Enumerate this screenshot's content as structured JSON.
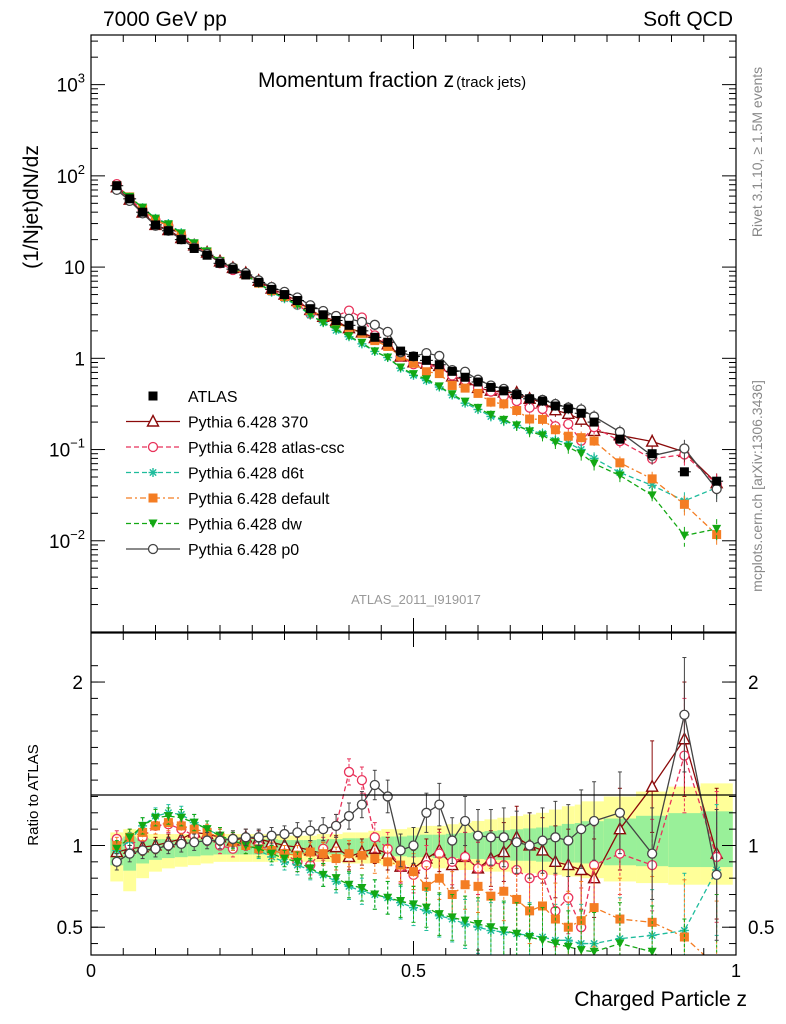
{
  "header": {
    "left": "7000 GeV pp",
    "right": "Soft QCD"
  },
  "side": {
    "rivet": "Rivet 3.1.10, ≥ 1.5M events",
    "mcplots": "mcplots.cern.ch [arXiv:1306.3436]"
  },
  "chart_data": {
    "type": "scatter",
    "title_main": "Momentum fraction z",
    "title_sub": "(track jets)",
    "watermark": "ATLAS_2011_I919017",
    "ylabel": "(1/Njet)dN/dz",
    "xlabel": "Charged Particle z",
    "ratio_ylabel": "Ratio to ATLAS",
    "xlim": [
      0,
      1
    ],
    "ylim": [
      0.001,
      3500
    ],
    "yscale": "log",
    "ratio_ylim": [
      0.33,
      2.3
    ],
    "x_ticks": [
      {
        "v": 0,
        "label": "0"
      },
      {
        "v": 0.5,
        "label": "0.5"
      },
      {
        "v": 1,
        "label": "1"
      }
    ],
    "y_ticks": [
      {
        "v": 1000,
        "base": "10",
        "exp": "3",
        "label": ""
      },
      {
        "v": 100,
        "base": "10",
        "exp": "2",
        "label": ""
      },
      {
        "v": 10,
        "base": "",
        "exp": "",
        "label": "10"
      },
      {
        "v": 1,
        "base": "",
        "exp": "",
        "label": "1"
      },
      {
        "v": 0.1,
        "base": "10",
        "exp": "−1",
        "label": ""
      },
      {
        "v": 0.01,
        "base": "10",
        "exp": "−2",
        "label": ""
      }
    ],
    "ratio_ticks": [
      {
        "v": 2,
        "label": "2"
      },
      {
        "v": 1,
        "label": "1"
      },
      {
        "v": 0.5,
        "label": "0.5"
      }
    ],
    "legend": "left-middle",
    "x": [
      0.04,
      0.06,
      0.08,
      0.1,
      0.12,
      0.14,
      0.16,
      0.18,
      0.2,
      0.22,
      0.24,
      0.26,
      0.28,
      0.3,
      0.32,
      0.34,
      0.36,
      0.38,
      0.4,
      0.42,
      0.44,
      0.46,
      0.48,
      0.5,
      0.52,
      0.54,
      0.56,
      0.58,
      0.6,
      0.62,
      0.64,
      0.66,
      0.68,
      0.7,
      0.72,
      0.74,
      0.76,
      0.78,
      0.82,
      0.87,
      0.92,
      0.97
    ],
    "data": {
      "name": "ATLAS",
      "color": "#000000",
      "values": [
        78,
        56,
        40,
        29,
        25,
        20,
        16,
        13.5,
        11,
        9.5,
        8.2,
        6.8,
        5.7,
        5.0,
        4.3,
        3.5,
        3.0,
        2.6,
        2.3,
        2.0,
        1.7,
        1.5,
        1.2,
        1.05,
        0.95,
        0.85,
        0.72,
        0.62,
        0.55,
        0.48,
        0.44,
        0.4,
        0.36,
        0.34,
        0.3,
        0.28,
        0.25,
        0.2,
        0.13,
        0.09,
        0.057,
        0.045
      ],
      "band_lo": [
        0.78,
        0.72,
        0.8,
        0.84,
        0.86,
        0.87,
        0.88,
        0.89,
        0.9,
        0.9,
        0.9,
        0.9,
        0.9,
        0.91,
        0.9,
        0.9,
        0.9,
        0.9,
        0.89,
        0.89,
        0.89,
        0.88,
        0.88,
        0.87,
        0.87,
        0.86,
        0.86,
        0.85,
        0.85,
        0.84,
        0.84,
        0.83,
        0.83,
        0.82,
        0.82,
        0.81,
        0.81,
        0.8,
        0.78,
        0.77,
        0.76,
        0.76
      ],
      "band_hi": [
        1.08,
        1.1,
        1.08,
        1.07,
        1.07,
        1.07,
        1.07,
        1.07,
        1.07,
        1.07,
        1.07,
        1.07,
        1.07,
        1.06,
        1.06,
        1.06,
        1.07,
        1.07,
        1.08,
        1.08,
        1.09,
        1.1,
        1.1,
        1.11,
        1.12,
        1.12,
        1.13,
        1.14,
        1.15,
        1.16,
        1.17,
        1.18,
        1.19,
        1.2,
        1.22,
        1.24,
        1.25,
        1.27,
        1.3,
        1.33,
        1.36,
        1.38
      ]
    },
    "series": [
      {
        "name": "Pythia 6.428 370",
        "color": "#8b0a0a",
        "dash": "",
        "marker": "triangle-open",
        "ratio": [
          0.96,
          0.98,
          0.99,
          1.0,
          1.02,
          1.04,
          1.08,
          1.07,
          1.05,
          1.03,
          1.05,
          1.04,
          1.02,
          1.0,
          0.99,
          0.97,
          0.95,
          0.99,
          0.93,
          0.96,
          0.98,
          0.95,
          0.87,
          0.86,
          0.92,
          0.97,
          0.88,
          0.93,
          0.86,
          0.92,
          0.96,
          1.05,
          1.0,
          0.97,
          0.9,
          0.88,
          0.85,
          0.8,
          1.1,
          1.36,
          1.65,
          0.95
        ],
        "err": [
          0.05,
          0.05,
          0.05,
          0.05,
          0.05,
          0.05,
          0.05,
          0.05,
          0.05,
          0.05,
          0.05,
          0.05,
          0.05,
          0.05,
          0.06,
          0.06,
          0.07,
          0.07,
          0.08,
          0.08,
          0.09,
          0.1,
          0.1,
          0.11,
          0.12,
          0.13,
          0.14,
          0.15,
          0.16,
          0.17,
          0.18,
          0.19,
          0.2,
          0.2,
          0.22,
          0.22,
          0.24,
          0.24,
          0.25,
          0.28,
          0.35,
          0.4
        ]
      },
      {
        "name": "Pythia 6.428 atlas-csc",
        "color": "#e8325a",
        "dash": "5,3",
        "marker": "circle-open",
        "ratio": [
          1.04,
          1.0,
          1.05,
          1.12,
          1.13,
          1.1,
          1.06,
          1.05,
          1.0,
          0.98,
          1.02,
          1.0,
          0.97,
          0.95,
          0.9,
          0.88,
          0.98,
          1.12,
          1.45,
          1.4,
          1.05,
          0.98,
          0.87,
          0.82,
          0.88,
          0.95,
          0.9,
          0.93,
          0.86,
          0.9,
          0.88,
          0.85,
          0.8,
          0.82,
          0.6,
          0.68,
          0.5,
          0.88,
          0.95,
          0.88,
          1.55,
          0.93
        ],
        "err": [
          0.05,
          0.05,
          0.05,
          0.05,
          0.05,
          0.05,
          0.05,
          0.05,
          0.05,
          0.05,
          0.05,
          0.05,
          0.05,
          0.05,
          0.06,
          0.06,
          0.07,
          0.07,
          0.08,
          0.08,
          0.09,
          0.1,
          0.1,
          0.11,
          0.12,
          0.13,
          0.14,
          0.15,
          0.16,
          0.17,
          0.18,
          0.19,
          0.2,
          0.2,
          0.22,
          0.22,
          0.24,
          0.24,
          0.25,
          0.28,
          0.35,
          0.4
        ]
      },
      {
        "name": "Pythia 6.428 d6t",
        "color": "#1ebc9c",
        "dash": "5,3",
        "marker": "star",
        "ratio": [
          0.97,
          1.03,
          1.12,
          1.18,
          1.2,
          1.19,
          1.14,
          1.1,
          1.06,
          1.02,
          1.0,
          0.97,
          0.93,
          0.9,
          0.88,
          0.85,
          0.82,
          0.78,
          0.75,
          0.72,
          0.7,
          0.68,
          0.65,
          0.62,
          0.6,
          0.57,
          0.55,
          0.52,
          0.5,
          0.48,
          0.47,
          0.46,
          0.45,
          0.44,
          0.42,
          0.42,
          0.4,
          0.4,
          0.43,
          0.45,
          0.48,
          0.85
        ],
        "err": [
          0.05,
          0.05,
          0.05,
          0.05,
          0.05,
          0.05,
          0.05,
          0.05,
          0.05,
          0.05,
          0.05,
          0.05,
          0.05,
          0.05,
          0.06,
          0.06,
          0.07,
          0.07,
          0.08,
          0.08,
          0.09,
          0.1,
          0.1,
          0.11,
          0.12,
          0.13,
          0.14,
          0.15,
          0.16,
          0.17,
          0.18,
          0.19,
          0.2,
          0.2,
          0.22,
          0.22,
          0.24,
          0.24,
          0.25,
          0.28,
          0.35,
          0.4
        ]
      },
      {
        "name": "Pythia 6.428 default",
        "color": "#f47d23",
        "dash": "6,3,2,3",
        "marker": "square-filled",
        "ratio": [
          1.0,
          1.05,
          1.08,
          1.12,
          1.14,
          1.12,
          1.1,
          1.08,
          1.05,
          1.02,
          1.0,
          0.98,
          0.97,
          0.95,
          0.94,
          0.96,
          0.95,
          0.92,
          0.95,
          0.94,
          0.92,
          0.9,
          0.88,
          0.84,
          0.75,
          0.8,
          0.7,
          0.76,
          0.75,
          0.69,
          0.72,
          0.67,
          0.6,
          0.63,
          0.55,
          0.5,
          0.54,
          0.62,
          0.55,
          0.53,
          0.44,
          0.26
        ],
        "err": [
          0.05,
          0.05,
          0.05,
          0.05,
          0.05,
          0.05,
          0.05,
          0.05,
          0.05,
          0.05,
          0.05,
          0.05,
          0.05,
          0.05,
          0.06,
          0.06,
          0.07,
          0.07,
          0.08,
          0.08,
          0.09,
          0.1,
          0.1,
          0.11,
          0.12,
          0.13,
          0.14,
          0.15,
          0.16,
          0.17,
          0.18,
          0.19,
          0.2,
          0.2,
          0.22,
          0.22,
          0.24,
          0.24,
          0.25,
          0.28,
          0.35,
          0.4
        ]
      },
      {
        "name": "Pythia 6.428 dw",
        "color": "#13a813",
        "dash": "5,3",
        "marker": "triangle-down-filled",
        "ratio": [
          0.98,
          1.05,
          1.12,
          1.17,
          1.18,
          1.17,
          1.14,
          1.1,
          1.06,
          1.03,
          1.0,
          0.98,
          0.95,
          0.92,
          0.9,
          0.86,
          0.82,
          0.8,
          0.76,
          0.74,
          0.7,
          0.68,
          0.66,
          0.64,
          0.62,
          0.58,
          0.56,
          0.54,
          0.52,
          0.5,
          0.48,
          0.46,
          0.44,
          0.42,
          0.4,
          0.38,
          0.36,
          0.35,
          0.4,
          0.35,
          0.2,
          0.3
        ],
        "err": [
          0.05,
          0.05,
          0.05,
          0.05,
          0.05,
          0.05,
          0.05,
          0.05,
          0.05,
          0.05,
          0.05,
          0.05,
          0.05,
          0.05,
          0.06,
          0.06,
          0.07,
          0.07,
          0.08,
          0.08,
          0.09,
          0.1,
          0.1,
          0.11,
          0.12,
          0.13,
          0.14,
          0.15,
          0.16,
          0.17,
          0.18,
          0.19,
          0.2,
          0.2,
          0.22,
          0.22,
          0.24,
          0.24,
          0.25,
          0.28,
          0.35,
          0.4
        ]
      },
      {
        "name": "Pythia 6.428 p0",
        "color": "#444444",
        "dash": "",
        "marker": "circle-open",
        "ratio": [
          0.9,
          0.95,
          0.97,
          0.98,
          1.0,
          1.01,
          1.02,
          1.03,
          1.03,
          1.04,
          1.05,
          1.05,
          1.06,
          1.07,
          1.08,
          1.09,
          1.1,
          1.12,
          1.18,
          1.25,
          1.37,
          1.3,
          0.97,
          1.0,
          1.2,
          1.25,
          1.03,
          1.15,
          1.06,
          1.05,
          1.05,
          1.02,
          1.0,
          1.03,
          1.05,
          1.03,
          1.1,
          1.15,
          1.2,
          0.95,
          1.8,
          0.82
        ],
        "err": [
          0.05,
          0.05,
          0.05,
          0.05,
          0.05,
          0.05,
          0.05,
          0.05,
          0.05,
          0.05,
          0.05,
          0.05,
          0.05,
          0.05,
          0.06,
          0.06,
          0.07,
          0.07,
          0.08,
          0.08,
          0.09,
          0.1,
          0.1,
          0.11,
          0.12,
          0.13,
          0.14,
          0.15,
          0.16,
          0.17,
          0.18,
          0.19,
          0.2,
          0.2,
          0.22,
          0.22,
          0.24,
          0.24,
          0.25,
          0.28,
          0.35,
          0.4
        ]
      }
    ]
  }
}
